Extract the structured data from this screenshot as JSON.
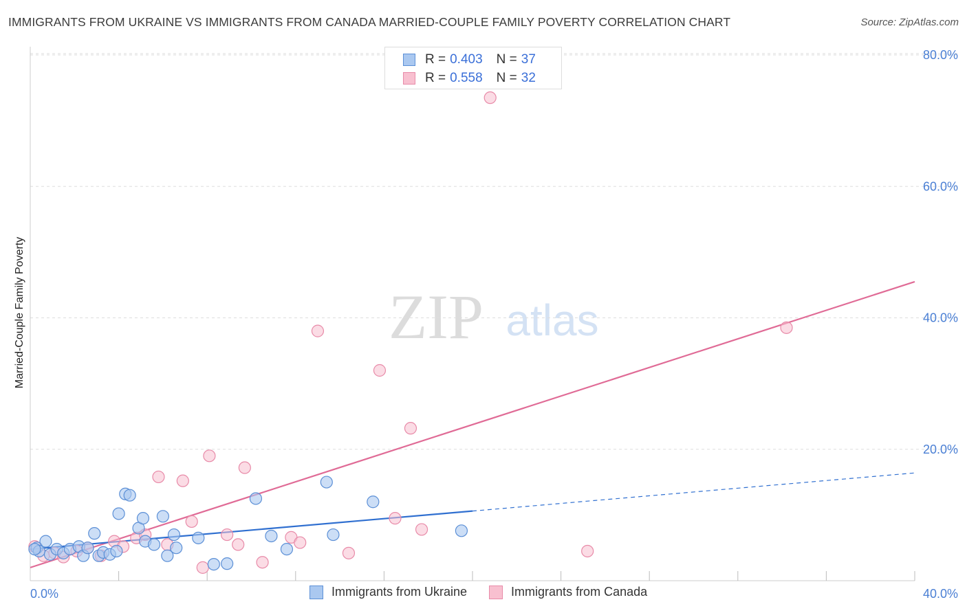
{
  "title": "IMMIGRANTS FROM UKRAINE VS IMMIGRANTS FROM CANADA MARRIED-COUPLE FAMILY POVERTY CORRELATION CHART",
  "source": "Source: ZipAtlas.com",
  "watermark": {
    "zip": "ZIP",
    "atlas": "atlas"
  },
  "legend_top": [
    {
      "r_label": "R =",
      "r_value": "0.403",
      "n_label": "N =",
      "n_value": "37"
    },
    {
      "r_label": "R =",
      "r_value": "0.558",
      "n_label": "N =",
      "n_value": "32"
    }
  ],
  "legend_bottom": [
    "Immigrants from Ukraine",
    "Immigrants from Canada"
  ],
  "colors": {
    "ukraine_fill": "#aac8f0",
    "ukraine_stroke": "#5b8fd6",
    "ukraine_line": "#2f6fd0",
    "canada_fill": "#f8c0d0",
    "canada_stroke": "#e88aa8",
    "canada_line": "#e06b96",
    "tick_label": "#4a7fd4",
    "grid": "#dddddd"
  },
  "chart_data": {
    "type": "scatter",
    "title": "IMMIGRANTS FROM UKRAINE VS IMMIGRANTS FROM CANADA MARRIED-COUPLE FAMILY POVERTY CORRELATION CHART",
    "xlabel": "",
    "ylabel": "Married-Couple Family Poverty",
    "xlim": [
      0,
      40
    ],
    "ylim": [
      0,
      82
    ],
    "x_tick_labels": [
      "0.0%",
      "40.0%"
    ],
    "y_ticks": [
      20,
      40,
      60,
      80
    ],
    "y_tick_labels": [
      "20.0%",
      "40.0%",
      "60.0%",
      "80.0%"
    ],
    "series": [
      {
        "name": "Immigrants from Ukraine",
        "r": 0.403,
        "n": 37,
        "points": [
          [
            0.3,
            5.0
          ],
          [
            0.4,
            4.5
          ],
          [
            0.7,
            6.0
          ],
          [
            0.9,
            4.0
          ],
          [
            1.2,
            4.8
          ],
          [
            1.5,
            4.2
          ],
          [
            1.8,
            4.8
          ],
          [
            2.2,
            5.2
          ],
          [
            2.4,
            3.8
          ],
          [
            2.6,
            5.0
          ],
          [
            2.9,
            7.2
          ],
          [
            3.1,
            3.8
          ],
          [
            3.3,
            4.3
          ],
          [
            3.6,
            4.0
          ],
          [
            3.9,
            4.5
          ],
          [
            4.0,
            10.2
          ],
          [
            4.3,
            13.2
          ],
          [
            4.5,
            13.0
          ],
          [
            4.9,
            8.0
          ],
          [
            5.1,
            9.5
          ],
          [
            5.2,
            6.0
          ],
          [
            5.6,
            5.5
          ],
          [
            6.0,
            9.8
          ],
          [
            6.2,
            3.8
          ],
          [
            6.5,
            7.0
          ],
          [
            6.6,
            5.0
          ],
          [
            7.6,
            6.5
          ],
          [
            8.3,
            2.5
          ],
          [
            8.9,
            2.6
          ],
          [
            10.2,
            12.5
          ],
          [
            10.9,
            6.8
          ],
          [
            11.6,
            4.8
          ],
          [
            13.4,
            15.0
          ],
          [
            13.7,
            7.0
          ],
          [
            15.5,
            12.0
          ],
          [
            19.5,
            7.6
          ],
          [
            0.2,
            4.8
          ]
        ]
      },
      {
        "name": "Immigrants from Canada",
        "r": 0.558,
        "n": 32,
        "points": [
          [
            0.2,
            5.2
          ],
          [
            0.6,
            3.8
          ],
          [
            1.1,
            4.2
          ],
          [
            1.5,
            3.6
          ],
          [
            2.1,
            4.5
          ],
          [
            2.6,
            5.0
          ],
          [
            3.2,
            3.8
          ],
          [
            3.8,
            6.0
          ],
          [
            4.2,
            5.2
          ],
          [
            4.8,
            6.5
          ],
          [
            5.2,
            7.0
          ],
          [
            5.8,
            15.8
          ],
          [
            6.2,
            5.5
          ],
          [
            6.9,
            15.2
          ],
          [
            7.3,
            9.0
          ],
          [
            7.8,
            2.0
          ],
          [
            8.1,
            19.0
          ],
          [
            8.9,
            7.0
          ],
          [
            9.4,
            5.5
          ],
          [
            9.7,
            17.2
          ],
          [
            10.5,
            2.8
          ],
          [
            11.8,
            6.6
          ],
          [
            12.2,
            5.8
          ],
          [
            13.0,
            38.0
          ],
          [
            14.4,
            4.2
          ],
          [
            15.8,
            32.0
          ],
          [
            16.5,
            9.5
          ],
          [
            17.2,
            23.2
          ],
          [
            17.7,
            7.8
          ],
          [
            20.8,
            73.5
          ],
          [
            25.2,
            4.5
          ],
          [
            34.2,
            38.5
          ]
        ]
      }
    ],
    "trendlines": [
      {
        "series": "Immigrants from Ukraine",
        "solid_from": [
          0,
          4.8
        ],
        "solid_to": [
          20,
          10.6
        ],
        "dashed_to": [
          40,
          16.4
        ]
      },
      {
        "series": "Immigrants from Canada",
        "from": [
          0,
          2.0
        ],
        "to": [
          40,
          45.5
        ]
      }
    ]
  }
}
